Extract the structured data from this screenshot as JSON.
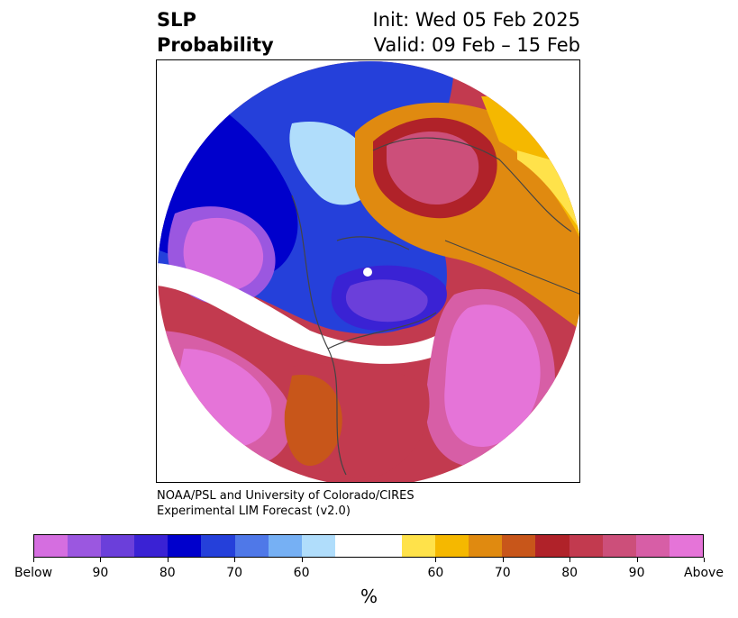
{
  "header": {
    "title_line1": "SLP",
    "title_line2": "Probability",
    "init": "Init: Wed 05 Feb 2025",
    "valid": "Valid: 09 Feb – 15 Feb"
  },
  "credit": {
    "line1": "NOAA/PSL and University of Colorado/CIRES",
    "line2": "Experimental LIM Forecast (v2.0)"
  },
  "colorbar": {
    "unit": "%",
    "colors": [
      "#d56ee0",
      "#9b57e0",
      "#6b3fda",
      "#3a22d4",
      "#0000cc",
      "#2540da",
      "#4f78e8",
      "#76b0f4",
      "#b0ddfb",
      "#ffffff",
      "#ffffff",
      "#ffe24a",
      "#f5b800",
      "#e08a10",
      "#c8561a",
      "#b02229",
      "#c23a4f",
      "#cc4f7a",
      "#d75ea6",
      "#e574d8"
    ],
    "labels": [
      "Below",
      "90",
      "80",
      "70",
      "60",
      "60",
      "70",
      "80",
      "90",
      "Above"
    ]
  },
  "map": {
    "projection": "north-polar-stereographic",
    "field": "SLP probability",
    "colors": {
      "strong_below": "#d56ee0",
      "below": "#0000cc",
      "weak_below": "#b0ddfb",
      "neutral": "#ffffff",
      "weak_above": "#ffe24a",
      "above": "#c8561a",
      "strong_above": "#e574d8"
    }
  }
}
